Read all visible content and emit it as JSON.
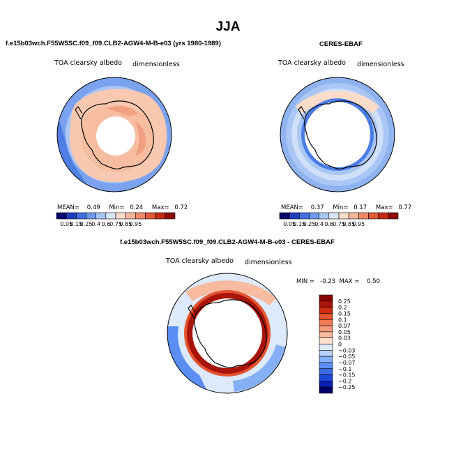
{
  "main_title": "JJA",
  "panels": {
    "model": {
      "title": "f.e15b03wch.F55W5SC.f09_f09.CLB2-AGW4-M-B-e03 (yrs 1980-1989)",
      "left_label": "TOA clearsky albedo",
      "right_label": "dimensionless",
      "mean_label": "MEAN=",
      "mean": "0.49",
      "min_label": "Min=",
      "min": "0.24",
      "max_label": "Max=",
      "max": "0.72"
    },
    "obs": {
      "title": "CERES-EBAF",
      "left_label": "TOA clearsky albedo",
      "right_label": "dimensionless",
      "mean_label": "MEAN=",
      "mean": "0.37",
      "min_label": "Min=",
      "min": "0.17",
      "max_label": "Max=",
      "max": "0.77"
    },
    "diff": {
      "title": "f.e15b03wch.F55W5SC.f09_f09.CLB2-AGW4-M-B-e03 - CERES-EBAF",
      "left_label": "TOA clearsky albedo",
      "right_label": "dimensionless",
      "minmax_text": "MIN =   -0.23  MAX =    0.50"
    }
  },
  "colors": {
    "abs_scale": [
      "#08066b",
      "#1f3cc0",
      "#3f6fe0",
      "#6f98ee",
      "#a8c6f4",
      "#d9e8f8",
      "#fbdcc8",
      "#f6b69a",
      "#ee8a67",
      "#e05a36",
      "#c32c14",
      "#8e0c06"
    ],
    "diff_scale": [
      "#00006a",
      "#0a1eb0",
      "#1a48d8",
      "#3a6ce8",
      "#5a8ef2",
      "#86b0f6",
      "#b8d2fa",
      "#dceafb",
      "#fbe0cc",
      "#f8bba0",
      "#f49a7b",
      "#ee7a56",
      "#e4522f",
      "#cd2d14",
      "#a8140a",
      "#8a0404"
    ],
    "land_outline": "#000000"
  },
  "chart_data": [
    {
      "type": "heatmap",
      "panel": "model",
      "projection": "south polar stereographic",
      "title": "f.e15b03wch.F55W5SC.f09_f09.CLB2-AGW4-M-B-e03 (yrs 1980-1989)",
      "variable": "TOA clearsky albedo",
      "units": "dimensionless",
      "colorbar_ticks": [
        "0.05",
        "0.15",
        "0.25",
        "0.4",
        "0.6",
        "0.75",
        "0.85",
        "0.95"
      ],
      "stats": {
        "mean": 0.49,
        "min": 0.24,
        "max": 0.72
      }
    },
    {
      "type": "heatmap",
      "panel": "obs",
      "projection": "south polar stereographic",
      "title": "CERES-EBAF",
      "variable": "TOA clearsky albedo",
      "units": "dimensionless",
      "colorbar_ticks": [
        "0.05",
        "0.15",
        "0.25",
        "0.4",
        "0.6",
        "0.75",
        "0.85",
        "0.95"
      ],
      "stats": {
        "mean": 0.37,
        "min": 0.17,
        "max": 0.77
      }
    },
    {
      "type": "heatmap",
      "panel": "diff",
      "projection": "south polar stereographic",
      "title": "f.e15b03wch.F55W5SC.f09_f09.CLB2-AGW4-M-B-e03 - CERES-EBAF",
      "variable": "TOA clearsky albedo",
      "units": "dimensionless",
      "colorbar_ticks": [
        "0.25",
        "0.2",
        "0.15",
        "0.1",
        "0.07",
        "0.05",
        "0.03",
        "0",
        "-0.03",
        "-0.05",
        "-0.07",
        "-0.1",
        "-0.15",
        "-0.2",
        "-0.25"
      ],
      "stats": {
        "min": -0.23,
        "max": 0.5
      }
    }
  ]
}
